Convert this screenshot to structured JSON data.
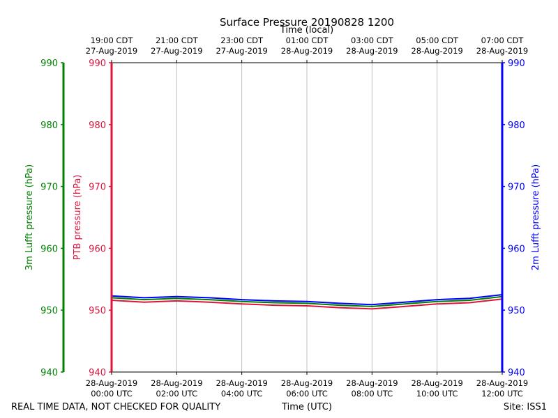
{
  "chart_data": {
    "type": "line",
    "title": "Surface Pressure 20190828 1200",
    "xlabel_bottom": "Time (UTC)",
    "xlabel_top": "Time (local)",
    "ylabel_ptb": "PTB pressure (hPa)",
    "ylabel_3m": "3m Lufft pressure (hPa)",
    "ylabel_2m": "2m Lufft pressure (hPa)",
    "ylim": [
      940,
      990
    ],
    "y_ticks": [
      "940",
      "950",
      "960",
      "970",
      "980",
      "990"
    ],
    "x_range_hours": [
      0,
      12
    ],
    "x_ticks_hours": [
      0,
      2,
      4,
      6,
      8,
      10,
      12
    ],
    "bottom_tick_labels": [
      {
        "date": "28-Aug-2019",
        "time": "00:00 UTC"
      },
      {
        "date": "28-Aug-2019",
        "time": "02:00 UTC"
      },
      {
        "date": "28-Aug-2019",
        "time": "04:00 UTC"
      },
      {
        "date": "28-Aug-2019",
        "time": "06:00 UTC"
      },
      {
        "date": "28-Aug-2019",
        "time": "08:00 UTC"
      },
      {
        "date": "28-Aug-2019",
        "time": "10:00 UTC"
      },
      {
        "date": "28-Aug-2019",
        "time": "12:00 UTC"
      }
    ],
    "top_tick_labels": [
      {
        "time": "19:00 CDT",
        "date": "27-Aug-2019"
      },
      {
        "time": "21:00 CDT",
        "date": "27-Aug-2019"
      },
      {
        "time": "23:00 CDT",
        "date": "27-Aug-2019"
      },
      {
        "time": "01:00 CDT",
        "date": "28-Aug-2019"
      },
      {
        "time": "03:00 CDT",
        "date": "28-Aug-2019"
      },
      {
        "time": "05:00 CDT",
        "date": "28-Aug-2019"
      },
      {
        "time": "07:00 CDT",
        "date": "28-Aug-2019"
      }
    ],
    "x": [
      0,
      1,
      2,
      3,
      4,
      5,
      6,
      7,
      8,
      9,
      10,
      11,
      12
    ],
    "series": [
      {
        "name": "2m Lufft pressure",
        "color": "#0000ff",
        "values": [
          952.3,
          952.0,
          952.2,
          952.0,
          951.7,
          951.5,
          951.4,
          951.1,
          950.9,
          951.3,
          951.7,
          951.9,
          952.5
        ]
      },
      {
        "name": "3m Lufft pressure",
        "color": "#008000",
        "values": [
          952.0,
          951.7,
          951.9,
          951.7,
          951.4,
          951.2,
          951.1,
          950.8,
          950.6,
          951.0,
          951.4,
          951.6,
          952.2
        ]
      },
      {
        "name": "PTB pressure",
        "color": "#dc143c",
        "values": [
          951.6,
          951.3,
          951.5,
          951.3,
          951.0,
          950.8,
          950.7,
          950.4,
          950.2,
          950.6,
          951.0,
          951.2,
          951.8
        ]
      }
    ],
    "colors": {
      "ptb_axis": "#dc143c",
      "lufft3m_axis": "#008000",
      "lufft2m_axis": "#0000ff",
      "grid": "#b0b0b0"
    }
  },
  "footer": {
    "disclaimer": "REAL TIME DATA, NOT CHECKED FOR QUALITY",
    "site": "Site: ISS1"
  }
}
